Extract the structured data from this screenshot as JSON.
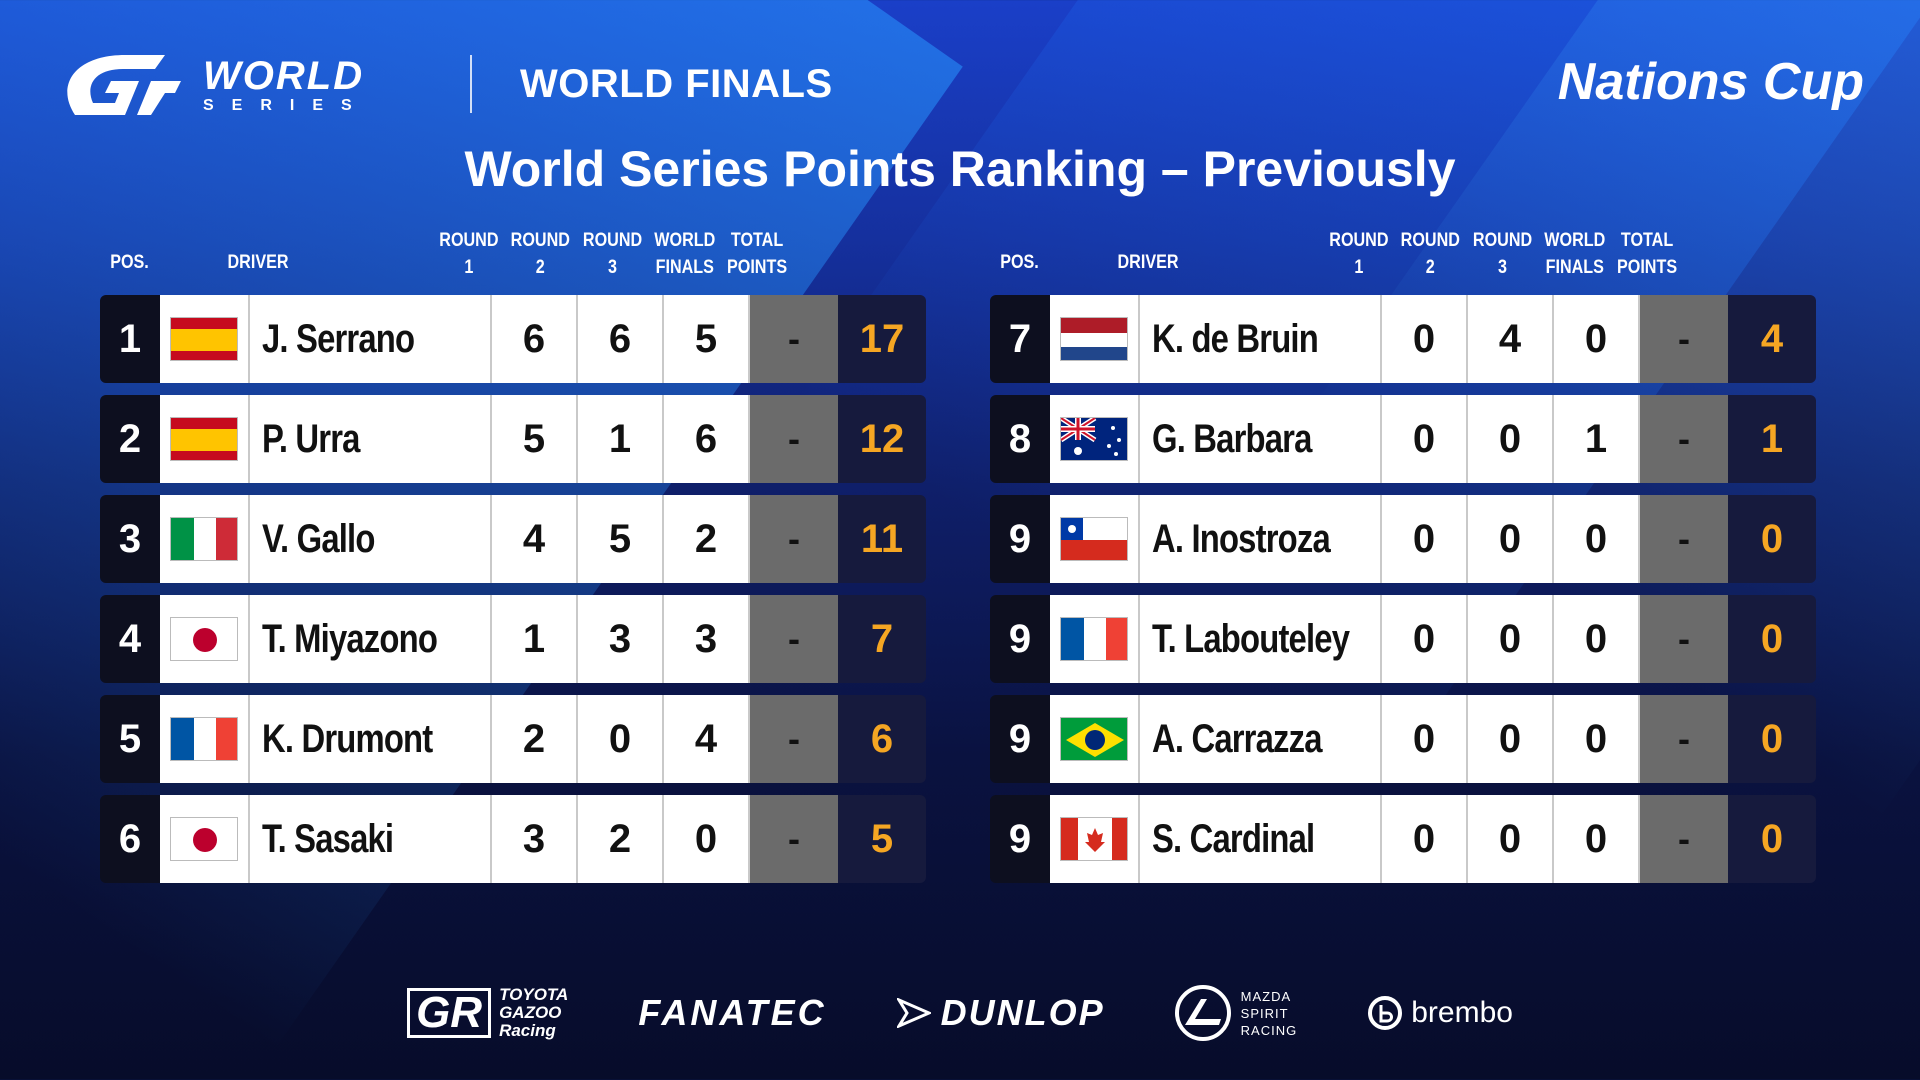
{
  "header": {
    "logo_world": "WORLD",
    "logo_series": "SERIES",
    "event": "WORLD FINALS",
    "cup": "Nations Cup",
    "title": "World Series Points Ranking – Previously"
  },
  "table_headers": {
    "pos": "POS.",
    "driver": "DRIVER",
    "round1_top": "ROUND",
    "round1_bottom": "1",
    "round2_top": "ROUND",
    "round2_bottom": "2",
    "round3_top": "ROUND",
    "round3_bottom": "3",
    "wf_top": "WORLD",
    "wf_bottom": "FINALS",
    "total_top": "TOTAL",
    "total_bottom": "POINTS"
  },
  "left_rows": [
    {
      "pos": "1",
      "flag": "spain-flag",
      "driver": "J. Serrano",
      "r1": "6",
      "r2": "6",
      "r3": "5",
      "wf": "-",
      "total": "17"
    },
    {
      "pos": "2",
      "flag": "spain-flag",
      "driver": "P. Urra",
      "r1": "5",
      "r2": "1",
      "r3": "6",
      "wf": "-",
      "total": "12"
    },
    {
      "pos": "3",
      "flag": "italy-flag",
      "driver": "V. Gallo",
      "r1": "4",
      "r2": "5",
      "r3": "2",
      "wf": "-",
      "total": "11"
    },
    {
      "pos": "4",
      "flag": "japan-flag",
      "driver": "T. Miyazono",
      "r1": "1",
      "r2": "3",
      "r3": "3",
      "wf": "-",
      "total": "7"
    },
    {
      "pos": "5",
      "flag": "france-flag",
      "driver": "K. Drumont",
      "r1": "2",
      "r2": "0",
      "r3": "4",
      "wf": "-",
      "total": "6"
    },
    {
      "pos": "6",
      "flag": "japan-flag",
      "driver": "T. Sasaki",
      "r1": "3",
      "r2": "2",
      "r3": "0",
      "wf": "-",
      "total": "5"
    }
  ],
  "right_rows": [
    {
      "pos": "7",
      "flag": "netherlands-flag",
      "driver": "K. de Bruin",
      "r1": "0",
      "r2": "4",
      "r3": "0",
      "wf": "-",
      "total": "4"
    },
    {
      "pos": "8",
      "flag": "australia-flag",
      "driver": "G. Barbara",
      "r1": "0",
      "r2": "0",
      "r3": "1",
      "wf": "-",
      "total": "1"
    },
    {
      "pos": "9",
      "flag": "chile-flag",
      "driver": "A. Inostroza",
      "r1": "0",
      "r2": "0",
      "r3": "0",
      "wf": "-",
      "total": "0"
    },
    {
      "pos": "9",
      "flag": "france-flag",
      "driver": "T. Labouteley",
      "r1": "0",
      "r2": "0",
      "r3": "0",
      "wf": "-",
      "total": "0"
    },
    {
      "pos": "9",
      "flag": "brazil-flag",
      "driver": "A. Carrazza",
      "r1": "0",
      "r2": "0",
      "r3": "0",
      "wf": "-",
      "total": "0"
    },
    {
      "pos": "9",
      "flag": "canada-flag",
      "driver": "S. Cardinal",
      "r1": "0",
      "r2": "0",
      "r3": "0",
      "wf": "-",
      "total": "0"
    }
  ],
  "sponsors": {
    "toyota_gr": "GR",
    "toyota_line1": "TOYOTA",
    "toyota_line2": "GAZOO",
    "toyota_line3": "Racing",
    "fanatec": "FANATEC",
    "dunlop": "DUNLOP",
    "mazda_line1": "MAZDA",
    "mazda_line2": "SPIRIT",
    "mazda_line3": "RACING",
    "brembo": "brembo"
  },
  "colors": {
    "total_points": "#f5a623",
    "world_finals_cell": "#6b6b6b",
    "pos_cell": "#0d0f1f"
  }
}
